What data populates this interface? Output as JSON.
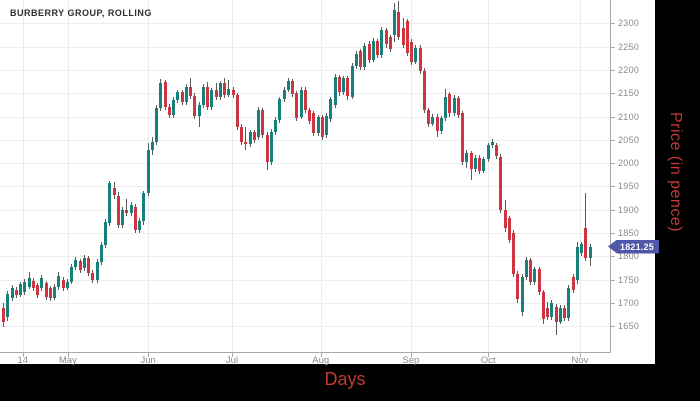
{
  "title": "BURBERRY GROUP, ROLLING",
  "axes": {
    "x_title": "Days",
    "y_title": "Price (in pence)"
  },
  "badge": {
    "value": "1821.25"
  },
  "colors": {
    "background": "#000000",
    "canvas": "#ffffff",
    "candle_up": "#16817b",
    "candle_down": "#cf3540",
    "wick": "#5a5a5a",
    "badge_bg": "#5056a8",
    "axis_title_red": "#c23a32",
    "tick_label_gray": "#8a8a8a",
    "grid": "#ededed",
    "axis_line": "#a8a8a8",
    "title_color": "#2e2e2e"
  },
  "chart_data": {
    "type": "candlestick",
    "title": "BURBERRY GROUP, ROLLING",
    "xlabel": "Days",
    "ylabel": "Price (in pence)",
    "ylim": [
      1595,
      2350
    ],
    "grid": true,
    "legend": "none",
    "y_ticks": [
      2300,
      2250,
      2200,
      2150,
      2100,
      2050,
      2000,
      1950,
      1900,
      1850,
      1800,
      1750,
      1700,
      1650
    ],
    "x_ticks": [
      {
        "label": "14",
        "day_index": 4.9
      },
      {
        "label": "May",
        "day_index": 15.5
      },
      {
        "label": "Jun",
        "day_index": 34.4
      },
      {
        "label": "Jul",
        "day_index": 54.1
      },
      {
        "label": "Aug",
        "day_index": 75.0
      },
      {
        "label": "Sep",
        "day_index": 96.2
      },
      {
        "label": "Oct",
        "day_index": 114.4
      },
      {
        "label": "Nov",
        "day_index": 136.0
      }
    ],
    "last_price": 1821.25,
    "candles_ohlc": [
      [
        1689,
        1700,
        1649,
        1660
      ],
      [
        1670,
        1726,
        1662,
        1720
      ],
      [
        1711,
        1738,
        1705,
        1732
      ],
      [
        1728,
        1734,
        1710,
        1717
      ],
      [
        1717,
        1746,
        1712,
        1740
      ],
      [
        1724,
        1752,
        1718,
        1745
      ],
      [
        1735,
        1767,
        1730,
        1754
      ],
      [
        1747,
        1753,
        1726,
        1732
      ],
      [
        1739,
        1744,
        1710,
        1717
      ],
      [
        1732,
        1760,
        1726,
        1754
      ],
      [
        1743,
        1748,
        1707,
        1713
      ],
      [
        1732,
        1737,
        1704,
        1711
      ],
      [
        1711,
        1741,
        1706,
        1735
      ],
      [
        1735,
        1766,
        1729,
        1758
      ],
      [
        1750,
        1756,
        1726,
        1733
      ],
      [
        1733,
        1751,
        1727,
        1745
      ],
      [
        1745,
        1783,
        1740,
        1777
      ],
      [
        1777,
        1799,
        1771,
        1793
      ],
      [
        1790,
        1795,
        1764,
        1770
      ],
      [
        1775,
        1803,
        1768,
        1797
      ],
      [
        1797,
        1801,
        1758,
        1764
      ],
      [
        1764,
        1770,
        1742,
        1749
      ],
      [
        1749,
        1794,
        1744,
        1788
      ],
      [
        1788,
        1830,
        1782,
        1824
      ],
      [
        1824,
        1880,
        1818,
        1874
      ],
      [
        1872,
        1962,
        1866,
        1957
      ],
      [
        1946,
        1960,
        1924,
        1931
      ],
      [
        1930,
        1938,
        1862,
        1868
      ],
      [
        1868,
        1906,
        1860,
        1900
      ],
      [
        1900,
        1923,
        1886,
        1893
      ],
      [
        1893,
        1916,
        1887,
        1910
      ],
      [
        1906,
        1912,
        1850,
        1857
      ],
      [
        1857,
        1882,
        1850,
        1875
      ],
      [
        1875,
        1941,
        1868,
        1935
      ],
      [
        1936,
        2043,
        1930,
        2028
      ],
      [
        2028,
        2056,
        2018,
        2046
      ],
      [
        2046,
        2124,
        2040,
        2118
      ],
      [
        2118,
        2180,
        2112,
        2172
      ],
      [
        2174,
        2179,
        2114,
        2121
      ],
      [
        2121,
        2126,
        2096,
        2103
      ],
      [
        2103,
        2141,
        2097,
        2135
      ],
      [
        2135,
        2158,
        2129,
        2152
      ],
      [
        2152,
        2157,
        2124,
        2131
      ],
      [
        2131,
        2170,
        2125,
        2164
      ],
      [
        2164,
        2183,
        2138,
        2145
      ],
      [
        2145,
        2150,
        2094,
        2101
      ],
      [
        2101,
        2131,
        2078,
        2125
      ],
      [
        2125,
        2169,
        2119,
        2163
      ],
      [
        2163,
        2175,
        2113,
        2120
      ],
      [
        2120,
        2162,
        2114,
        2156
      ],
      [
        2156,
        2172,
        2135,
        2141
      ],
      [
        2141,
        2177,
        2135,
        2171
      ],
      [
        2171,
        2183,
        2140,
        2147
      ],
      [
        2147,
        2178,
        2141,
        2160
      ],
      [
        2158,
        2163,
        2140,
        2146
      ],
      [
        2146,
        2151,
        2072,
        2078
      ],
      [
        2078,
        2083,
        2040,
        2046
      ],
      [
        2046,
        2077,
        2028,
        2041
      ],
      [
        2041,
        2072,
        2035,
        2066
      ],
      [
        2066,
        2071,
        2044,
        2050
      ],
      [
        2057,
        2120,
        2050,
        2114
      ],
      [
        2114,
        2119,
        2054,
        2060
      ],
      [
        2060,
        2066,
        1985,
        2003
      ],
      [
        2003,
        2073,
        1997,
        2067
      ],
      [
        2067,
        2098,
        2061,
        2092
      ],
      [
        2092,
        2143,
        2086,
        2137
      ],
      [
        2137,
        2164,
        2131,
        2158
      ],
      [
        2158,
        2182,
        2152,
        2176
      ],
      [
        2176,
        2181,
        2142,
        2148
      ],
      [
        2150,
        2155,
        2090,
        2096
      ],
      [
        2100,
        2164,
        2094,
        2158
      ],
      [
        2158,
        2163,
        2108,
        2114
      ],
      [
        2114,
        2119,
        2084,
        2090
      ],
      [
        2107,
        2112,
        2058,
        2064
      ],
      [
        2064,
        2104,
        2058,
        2098
      ],
      [
        2098,
        2103,
        2050,
        2057
      ],
      [
        2060,
        2108,
        2054,
        2102
      ],
      [
        2095,
        2143,
        2089,
        2137
      ],
      [
        2125,
        2191,
        2119,
        2185
      ],
      [
        2185,
        2190,
        2145,
        2152
      ],
      [
        2152,
        2188,
        2146,
        2182
      ],
      [
        2182,
        2187,
        2136,
        2143
      ],
      [
        2143,
        2214,
        2137,
        2208
      ],
      [
        2208,
        2241,
        2202,
        2235
      ],
      [
        2240,
        2245,
        2199,
        2206
      ],
      [
        2206,
        2258,
        2200,
        2252
      ],
      [
        2256,
        2261,
        2215,
        2222
      ],
      [
        2222,
        2268,
        2216,
        2262
      ],
      [
        2262,
        2267,
        2226,
        2232
      ],
      [
        2232,
        2292,
        2226,
        2286
      ],
      [
        2286,
        2291,
        2248,
        2255
      ],
      [
        2271,
        2276,
        2238,
        2245
      ],
      [
        2275,
        2344,
        2260,
        2329
      ],
      [
        2324,
        2348,
        2265,
        2271
      ],
      [
        2290,
        2311,
        2246,
        2253
      ],
      [
        2305,
        2310,
        2229,
        2236
      ],
      [
        2260,
        2266,
        2211,
        2218
      ],
      [
        2218,
        2254,
        2212,
        2248
      ],
      [
        2248,
        2253,
        2191,
        2198
      ],
      [
        2198,
        2204,
        2108,
        2114
      ],
      [
        2114,
        2119,
        2078,
        2085
      ],
      [
        2085,
        2106,
        2079,
        2100
      ],
      [
        2100,
        2105,
        2057,
        2068
      ],
      [
        2068,
        2102,
        2062,
        2096
      ],
      [
        2096,
        2160,
        2090,
        2143
      ],
      [
        2148,
        2153,
        2100,
        2107
      ],
      [
        2107,
        2146,
        2101,
        2140
      ],
      [
        2140,
        2145,
        2097,
        2104
      ],
      [
        2107,
        2112,
        1996,
        2002
      ],
      [
        2002,
        2028,
        1990,
        2022
      ],
      [
        2022,
        2027,
        1964,
        1988
      ],
      [
        1988,
        2018,
        1982,
        2012
      ],
      [
        2012,
        2017,
        1977,
        1984
      ],
      [
        1984,
        2014,
        1978,
        2008
      ],
      [
        2008,
        2044,
        2002,
        2038
      ],
      [
        2038,
        2052,
        2032,
        2046
      ],
      [
        2038,
        2043,
        2009,
        2016
      ],
      [
        2014,
        2019,
        1893,
        1900
      ],
      [
        1900,
        1922,
        1853,
        1860
      ],
      [
        1882,
        1887,
        1829,
        1836
      ],
      [
        1850,
        1856,
        1755,
        1762
      ],
      [
        1762,
        1768,
        1701,
        1708
      ],
      [
        1680,
        1762,
        1672,
        1756
      ],
      [
        1756,
        1799,
        1750,
        1792
      ],
      [
        1792,
        1797,
        1738,
        1745
      ],
      [
        1745,
        1778,
        1739,
        1772
      ],
      [
        1772,
        1777,
        1717,
        1724
      ],
      [
        1724,
        1729,
        1656,
        1666
      ],
      [
        1690,
        1702,
        1663,
        1670
      ],
      [
        1670,
        1706,
        1664,
        1700
      ],
      [
        1692,
        1697,
        1631,
        1660
      ],
      [
        1660,
        1696,
        1654,
        1690
      ],
      [
        1690,
        1695,
        1661,
        1668
      ],
      [
        1668,
        1738,
        1662,
        1732
      ],
      [
        1755,
        1763,
        1721,
        1728
      ],
      [
        1749,
        1831,
        1740,
        1820
      ],
      [
        1807,
        1832,
        1800,
        1826
      ],
      [
        1862,
        1935,
        1790,
        1797
      ],
      [
        1797,
        1827,
        1780,
        1821.25
      ]
    ]
  }
}
